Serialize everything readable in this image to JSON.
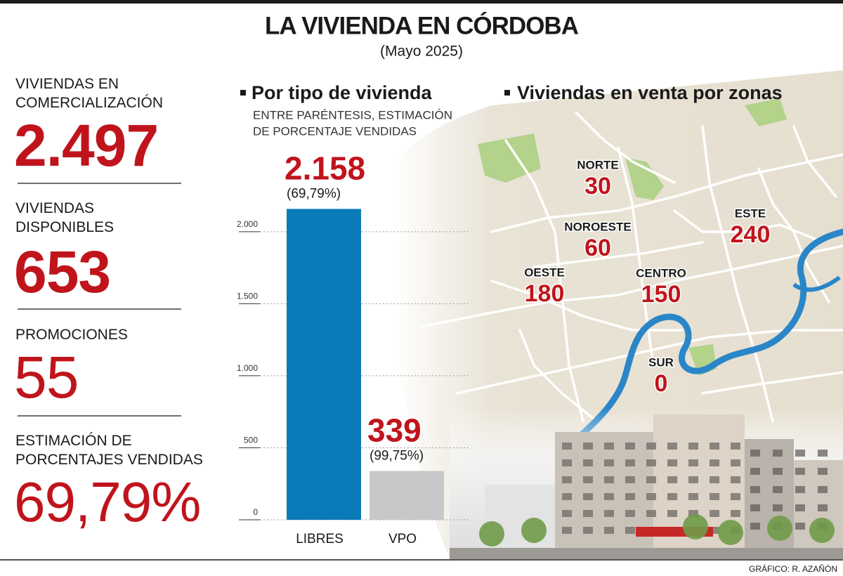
{
  "header": {
    "title": "LA VIVIENDA EN CÓRDOBA",
    "subtitle": "(Mayo 2025)"
  },
  "stats": [
    {
      "label": [
        "VIVIENDAS EN",
        "COMERCIALIZACIÓN"
      ],
      "value": "2.497"
    },
    {
      "label": [
        "VIVIENDAS",
        "DISPONIBLES"
      ],
      "value": "653"
    },
    {
      "label": [
        "PROMOCIONES"
      ],
      "value": "55"
    },
    {
      "label": [
        "ESTIMACIÓN DE",
        "PORCENTAJES VENDIDAS"
      ],
      "value": "69,79%"
    }
  ],
  "chart_data": {
    "type": "bar",
    "title": "Por tipo de vivienda",
    "subtitle": [
      "ENTRE PARÉNTESIS,  ESTIMACIÓN",
      "DE PORCENTAJE VENDIDAS"
    ],
    "categories": [
      "LIBRES",
      "VPO"
    ],
    "values": [
      2158,
      339
    ],
    "value_labels": [
      "2.158",
      "339"
    ],
    "annotations": [
      "(69,79%)",
      "(99,75%)"
    ],
    "colors": [
      "#0a7ab8",
      "#c8c8c8"
    ],
    "ylim": [
      0,
      2200
    ],
    "yticks": [
      0,
      500,
      {
        "value": 1000,
        "label": "1.000"
      },
      {
        "value": 1500,
        "label": "1.500"
      },
      {
        "value": 2000,
        "label": "2.000"
      }
    ],
    "grid": true
  },
  "map": {
    "title": "Viviendas en venta por zonas",
    "zones": [
      {
        "name": "NORTE",
        "value": "30"
      },
      {
        "name": "NOROESTE",
        "value": "60"
      },
      {
        "name": "ESTE",
        "value": "240"
      },
      {
        "name": "OESTE",
        "value": "180"
      },
      {
        "name": "CENTRO",
        "value": "150"
      },
      {
        "name": "SUR",
        "value": "0"
      }
    ]
  },
  "footer": {
    "credit": "GRÁFICO: R. AZAÑÓN"
  }
}
